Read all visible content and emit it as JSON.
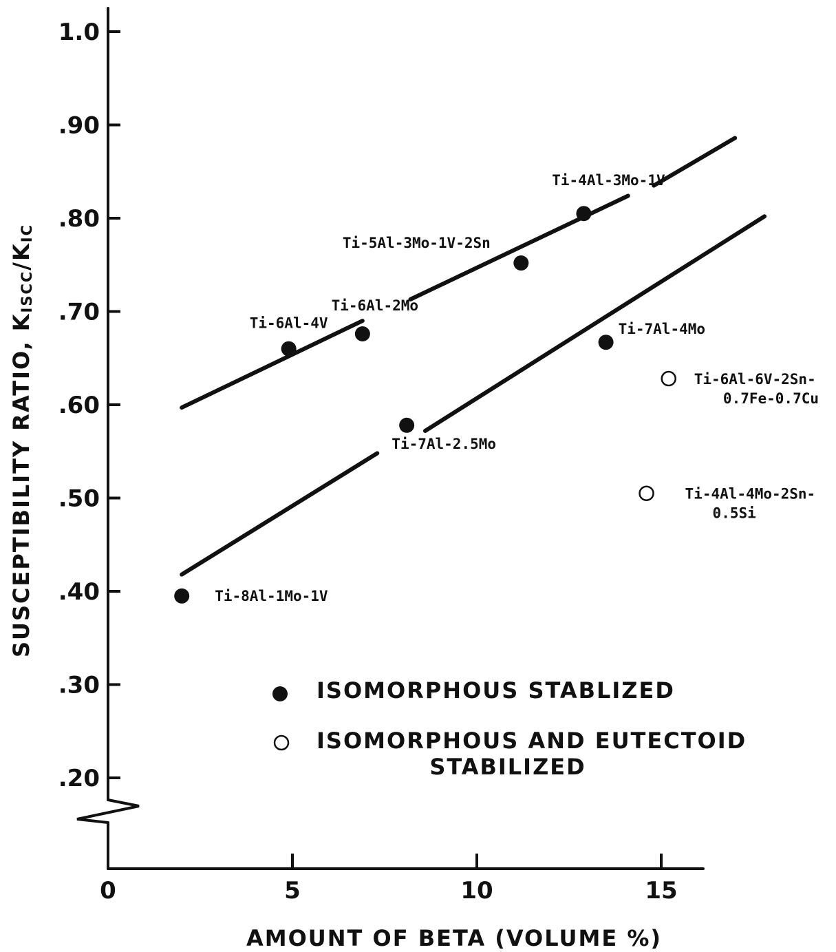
{
  "chart_data": {
    "type": "scatter",
    "xlabel": "AMOUNT OF BETA (VOLUME %)",
    "ylabel": "SUSCEPTIBILITY RATIO, K",
    "ylabel_sub": "ISCC",
    "ylabel_slash": "/K",
    "ylabel_sub2": "IC",
    "xlim": [
      0,
      16
    ],
    "ylim": [
      0.2,
      1.0
    ],
    "y_axis_break": true,
    "grid": false,
    "legend_position": "bottom-center",
    "x_ticks": [
      0,
      5,
      10,
      15
    ],
    "x_tick_labels": [
      "0",
      "5",
      "10",
      "15"
    ],
    "y_ticks": [
      1.0,
      0.9,
      0.8,
      0.7,
      0.6,
      0.5,
      0.4,
      0.3,
      0.2
    ],
    "y_tick_labels": [
      "1.0",
      ".90",
      ".80",
      ".70",
      ".60",
      ".50",
      ".40",
      ".30",
      ".20"
    ],
    "series": [
      {
        "name": "ISOMORPHOUS STABLIZED",
        "marker": "filled-circle",
        "points": [
          {
            "x": 2.0,
            "y": 0.395,
            "label": "Ti-8Al-1Mo-1V"
          },
          {
            "x": 4.9,
            "y": 0.66,
            "label": "Ti-6Al-4V"
          },
          {
            "x": 6.9,
            "y": 0.676,
            "label": "Ti-6Al-2Mo"
          },
          {
            "x": 8.1,
            "y": 0.578,
            "label": "Ti-7Al-2.5Mo"
          },
          {
            "x": 11.2,
            "y": 0.752,
            "label": "Ti-5Al-3Mo-1V-2Sn"
          },
          {
            "x": 12.9,
            "y": 0.805,
            "label": "Ti-4Al-3Mo-1V"
          },
          {
            "x": 13.5,
            "y": 0.667,
            "label": "Ti-7Al-4Mo"
          }
        ]
      },
      {
        "name": "ISOMORPHOUS AND EUTECTOID STABILIZED",
        "name_line1": "ISOMORPHOUS AND EUTECTOID",
        "name_line2": "STABILIZED",
        "marker": "open-circle",
        "points": [
          {
            "x": 15.2,
            "y": 0.628,
            "label_line1": "Ti-6Al-6V-2Sn-",
            "label_line2": "0.7Fe-0.7Cu"
          },
          {
            "x": 14.6,
            "y": 0.505,
            "label_line1": "Ti-4Al-4Mo-2Sn-",
            "label_line2": "0.5Si"
          }
        ]
      }
    ],
    "trend_lines": [
      {
        "segments": [
          [
            [
              2.0,
              0.597
            ],
            [
              6.9,
              0.69
            ]
          ],
          [
            [
              8.2,
              0.713
            ],
            [
              14.1,
              0.824
            ]
          ],
          [
            [
              14.8,
              0.835
            ],
            [
              17.0,
              0.886
            ]
          ]
        ]
      },
      {
        "segments": [
          [
            [
              2.0,
              0.418
            ],
            [
              7.3,
              0.548
            ]
          ],
          [
            [
              8.6,
              0.572
            ],
            [
              17.8,
              0.802
            ]
          ]
        ]
      }
    ]
  }
}
